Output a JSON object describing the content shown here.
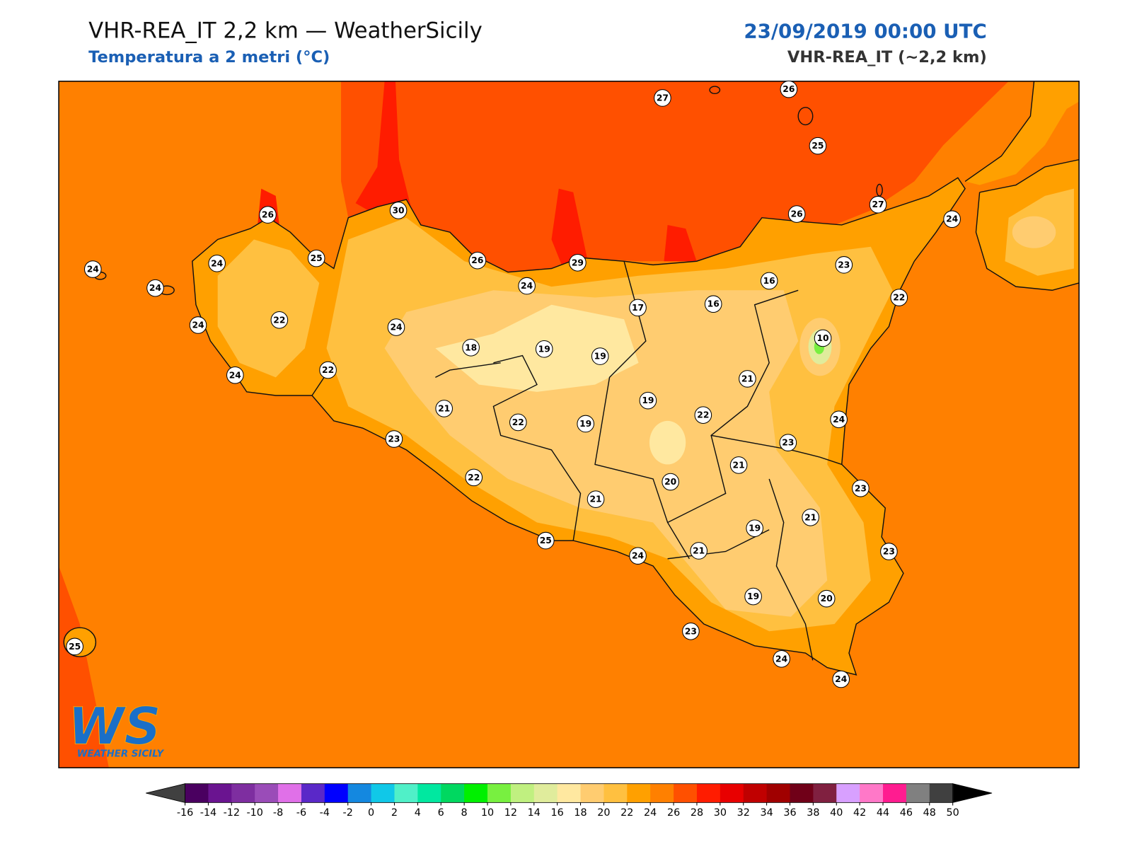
{
  "header": {
    "title": "VHR-REA_IT 2,2 km — WeatherSicily",
    "subtitle": "Temperatura a 2 metri (°C)",
    "date": "23/09/2019 00:00 UTC",
    "model": "VHR-REA_IT (~2,2 km)"
  },
  "stations": [
    27,
    26,
    25,
    30,
    26,
    26,
    27,
    24,
    24,
    24,
    25,
    26,
    29,
    23,
    24,
    24,
    16,
    22,
    17,
    16,
    22,
    24,
    24,
    10,
    18,
    19,
    19,
    22,
    24,
    21,
    19,
    21,
    22,
    24,
    22,
    19,
    23,
    23,
    21,
    22,
    20,
    23,
    21,
    21,
    19,
    25,
    23,
    21,
    24,
    19,
    20,
    23,
    25,
    24,
    24
  ],
  "colorbar": {
    "ticks": [
      -16,
      -14,
      -12,
      -10,
      -8,
      -6,
      -4,
      -2,
      0,
      2,
      4,
      6,
      8,
      10,
      12,
      14,
      16,
      18,
      20,
      22,
      24,
      26,
      28,
      30,
      32,
      34,
      36,
      38,
      40,
      42,
      44,
      46,
      48,
      50
    ],
    "colors": [
      "#4a0060",
      "#6a1490",
      "#7e2ea0",
      "#9a4cb8",
      "#e070e8",
      "#5a28c8",
      "#0000ff",
      "#1488e0",
      "#10c8e8",
      "#50f0c8",
      "#00e8a0",
      "#00d860",
      "#00f000",
      "#78f040",
      "#c0f080",
      "#e0ec9c",
      "#ffe8a0",
      "#ffcc70",
      "#ffc040",
      "#ffa000",
      "#ff8000",
      "#ff5000",
      "#ff1c00",
      "#e80000",
      "#c00000",
      "#a00000",
      "#700018",
      "#802040",
      "#d8a0ff",
      "#ff78c8",
      "#ff1c90",
      "#808080",
      "#404040"
    ],
    "under_color": "#404040",
    "over_color": "#000000"
  },
  "logo": {
    "mark": "WS",
    "text": "WEATHER SICILY"
  }
}
